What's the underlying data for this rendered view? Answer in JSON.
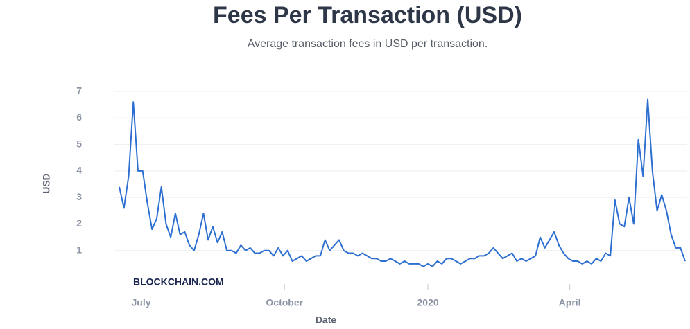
{
  "chart_data": {
    "type": "line",
    "title": "Fees Per Transaction (USD)",
    "subtitle": "Average transaction fees in USD per transaction.",
    "x_label": "Date",
    "y_label": "USD",
    "watermark": "BLOCKCHAIN.COM",
    "color": "#2c6fd1",
    "grid": true,
    "xlim": [
      0,
      121
    ],
    "xticks": [
      {
        "value": 4.67,
        "label": "July"
      },
      {
        "value": 35.33,
        "label": "October"
      },
      {
        "value": 66,
        "label": "2020"
      },
      {
        "value": 96.33,
        "label": "April"
      }
    ],
    "ylim": [
      0,
      7
    ],
    "yticks": [
      1,
      2,
      3,
      4,
      5,
      6,
      7
    ],
    "values": [
      3.4,
      2.6,
      3.8,
      6.6,
      4.0,
      4.0,
      2.8,
      1.8,
      2.2,
      3.4,
      2.0,
      1.5,
      2.4,
      1.6,
      1.7,
      1.2,
      1.0,
      1.6,
      2.4,
      1.4,
      1.9,
      1.3,
      1.7,
      1.0,
      1.0,
      0.9,
      1.2,
      1.0,
      1.1,
      0.9,
      0.9,
      1.0,
      1.0,
      0.8,
      1.1,
      0.8,
      1.0,
      0.6,
      0.7,
      0.8,
      0.6,
      0.7,
      0.8,
      0.8,
      1.4,
      1.0,
      1.2,
      1.4,
      1.0,
      0.9,
      0.9,
      0.8,
      0.9,
      0.8,
      0.7,
      0.7,
      0.6,
      0.6,
      0.7,
      0.6,
      0.5,
      0.6,
      0.5,
      0.5,
      0.5,
      0.4,
      0.5,
      0.4,
      0.6,
      0.5,
      0.7,
      0.7,
      0.6,
      0.5,
      0.6,
      0.7,
      0.7,
      0.8,
      0.8,
      0.9,
      1.1,
      0.9,
      0.7,
      0.8,
      0.9,
      0.6,
      0.7,
      0.6,
      0.7,
      0.8,
      1.5,
      1.1,
      1.4,
      1.7,
      1.2,
      0.9,
      0.7,
      0.6,
      0.6,
      0.5,
      0.6,
      0.5,
      0.7,
      0.6,
      0.9,
      0.8,
      2.9,
      2.0,
      1.9,
      3.0,
      2.0,
      5.2,
      3.8,
      6.7,
      4.0,
      2.5,
      3.1,
      2.5,
      1.6,
      1.1,
      1.1,
      0.6
    ]
  }
}
